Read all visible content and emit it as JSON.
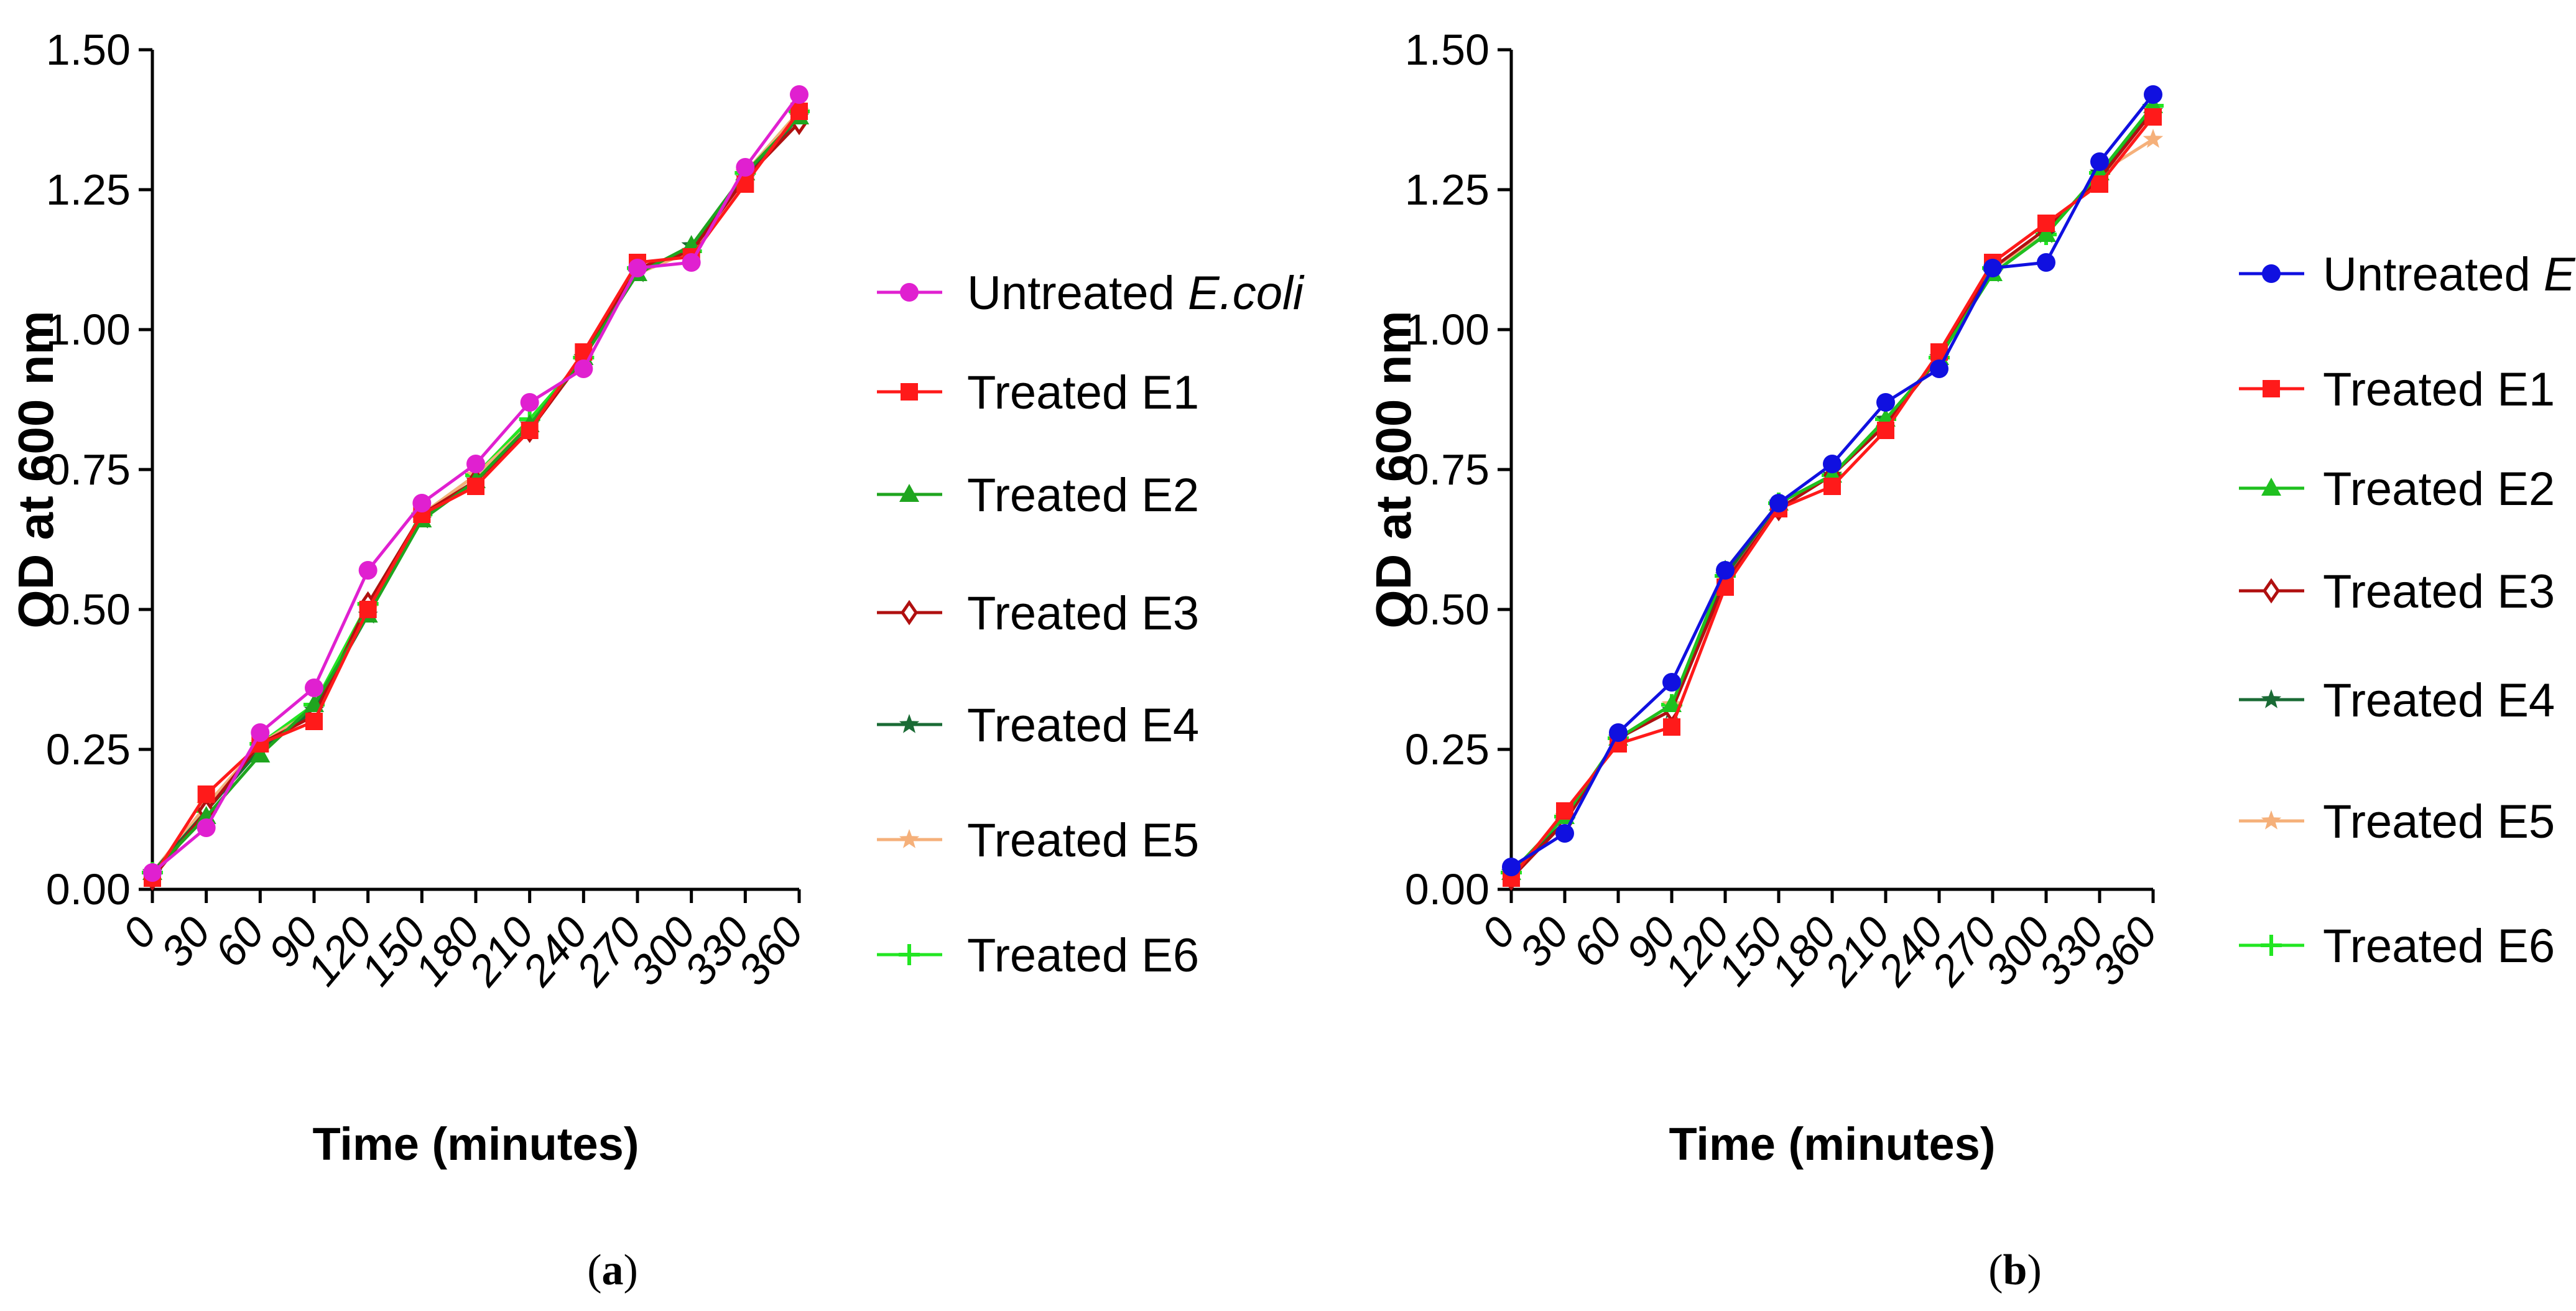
{
  "chart_data": [
    {
      "type": "line",
      "panel_label": "(a)",
      "panel_label_letter": "a",
      "xlabel": "Time (minutes)",
      "ylabel": "OD at 600 nm",
      "ylim": [
        0,
        1.5
      ],
      "yticks": [
        "0.00",
        "0.25",
        "0.50",
        "0.75",
        "1.00",
        "1.25",
        "1.50"
      ],
      "x": [
        0,
        30,
        60,
        90,
        120,
        150,
        180,
        210,
        240,
        270,
        300,
        330,
        360
      ],
      "legend_position": "right",
      "series": [
        {
          "name": "Untreated ",
          "italic": "E.coli",
          "color": "#e020d0",
          "marker": "circle",
          "values": [
            0.03,
            0.11,
            0.28,
            0.36,
            0.57,
            0.69,
            0.76,
            0.87,
            0.93,
            1.11,
            1.12,
            1.29,
            1.42
          ]
        },
        {
          "name": "Treated E1",
          "italic": "",
          "color": "#ff1a1a",
          "marker": "square",
          "values": [
            0.02,
            0.17,
            0.26,
            0.3,
            0.5,
            0.67,
            0.72,
            0.82,
            0.96,
            1.12,
            1.13,
            1.26,
            1.39
          ]
        },
        {
          "name": "Treated E2",
          "italic": "",
          "color": "#1fa51f",
          "marker": "triangle",
          "values": [
            0.03,
            0.13,
            0.24,
            0.33,
            0.49,
            0.66,
            0.73,
            0.83,
            0.95,
            1.1,
            1.15,
            1.28,
            1.38
          ]
        },
        {
          "name": "Treated E3",
          "italic": "",
          "color": "#b01010",
          "marker": "diamond",
          "values": [
            0.02,
            0.14,
            0.26,
            0.31,
            0.51,
            0.67,
            0.73,
            0.82,
            0.95,
            1.11,
            1.14,
            1.27,
            1.37
          ]
        },
        {
          "name": "Treated E4",
          "italic": "",
          "color": "#1a6b35",
          "marker": "star",
          "values": [
            0.03,
            0.14,
            0.25,
            0.32,
            0.49,
            0.66,
            0.73,
            0.83,
            0.95,
            1.1,
            1.15,
            1.27,
            1.38
          ]
        },
        {
          "name": "Treated E5",
          "italic": "",
          "color": "#f5b07a",
          "marker": "star",
          "values": [
            0.03,
            0.15,
            0.26,
            0.32,
            0.5,
            0.67,
            0.74,
            0.83,
            0.95,
            1.1,
            1.14,
            1.28,
            1.39
          ]
        },
        {
          "name": "Treated E6",
          "italic": "",
          "color": "#22e622",
          "marker": "plus",
          "values": [
            0.03,
            0.14,
            0.26,
            0.33,
            0.51,
            0.67,
            0.74,
            0.84,
            0.95,
            1.11,
            1.14,
            1.28,
            1.39
          ]
        }
      ]
    },
    {
      "type": "line",
      "panel_label": "(b)",
      "panel_label_letter": "b",
      "xlabel": "Time (minutes)",
      "ylabel": "OD at 600 nm",
      "ylim": [
        0,
        1.5
      ],
      "yticks": [
        "0.00",
        "0.25",
        "0.50",
        "0.75",
        "1.00",
        "1.25",
        "1.50"
      ],
      "x": [
        0,
        30,
        60,
        90,
        120,
        150,
        180,
        210,
        240,
        270,
        300,
        330,
        360
      ],
      "legend_position": "right",
      "series": [
        {
          "name": "Untreated ",
          "italic": "E.coli",
          "color": "#1010e0",
          "marker": "circle",
          "values": [
            0.04,
            0.1,
            0.28,
            0.37,
            0.57,
            0.69,
            0.76,
            0.87,
            0.93,
            1.11,
            1.12,
            1.3,
            1.42
          ]
        },
        {
          "name": "Treated E1",
          "italic": "",
          "color": "#ff1a1a",
          "marker": "square",
          "values": [
            0.02,
            0.14,
            0.26,
            0.29,
            0.54,
            0.68,
            0.72,
            0.82,
            0.96,
            1.12,
            1.19,
            1.26,
            1.38
          ]
        },
        {
          "name": "Treated E2",
          "italic": "",
          "color": "#1fc01f",
          "marker": "triangle",
          "values": [
            0.03,
            0.13,
            0.27,
            0.33,
            0.57,
            0.69,
            0.74,
            0.84,
            0.95,
            1.1,
            1.17,
            1.28,
            1.4
          ]
        },
        {
          "name": "Treated E3",
          "italic": "",
          "color": "#b01010",
          "marker": "diamond",
          "values": [
            0.02,
            0.12,
            0.27,
            0.32,
            0.55,
            0.68,
            0.74,
            0.83,
            0.95,
            1.11,
            1.18,
            1.27,
            1.39
          ]
        },
        {
          "name": "Treated E4",
          "italic": "",
          "color": "#1a6b35",
          "marker": "star",
          "values": [
            0.03,
            0.12,
            0.27,
            0.32,
            0.56,
            0.69,
            0.74,
            0.84,
            0.95,
            1.1,
            1.17,
            1.28,
            1.39
          ]
        },
        {
          "name": "Treated E5",
          "italic": "",
          "color": "#f5b07a",
          "marker": "star",
          "values": [
            0.03,
            0.13,
            0.27,
            0.33,
            0.56,
            0.68,
            0.74,
            0.84,
            0.95,
            1.11,
            1.17,
            1.28,
            1.34
          ]
        },
        {
          "name": "Treated E6",
          "italic": "",
          "color": "#22e622",
          "marker": "plus",
          "values": [
            0.03,
            0.13,
            0.27,
            0.33,
            0.56,
            0.69,
            0.74,
            0.84,
            0.95,
            1.11,
            1.17,
            1.28,
            1.4
          ]
        }
      ]
    }
  ]
}
